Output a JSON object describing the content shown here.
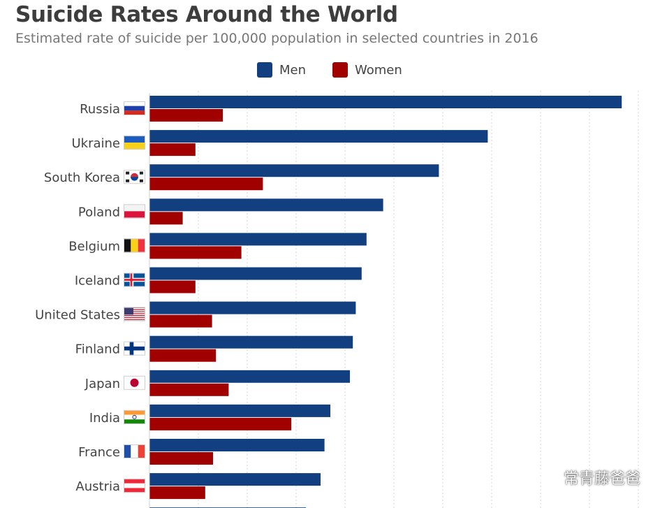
{
  "chart_data": {
    "type": "bar",
    "orientation": "horizontal",
    "title": "Suicide Rates Around the World",
    "subtitle": "Estimated rate of suicide per 100,000 population in selected countries in 2016",
    "legend_position": "top",
    "grid": true,
    "xlim": [
      0,
      50
    ],
    "categories": [
      "Russia",
      "Ukraine",
      "South Korea",
      "Poland",
      "Belgium",
      "Iceland",
      "United States",
      "Finland",
      "Japan",
      "India",
      "France",
      "Austria"
    ],
    "series": [
      {
        "name": "Men",
        "color": "#123f80",
        "values": [
          48.3,
          34.6,
          29.6,
          23.9,
          22.2,
          21.7,
          21.1,
          20.8,
          20.5,
          18.5,
          17.9,
          17.5
        ]
      },
      {
        "name": "Women",
        "color": "#a00000",
        "values": [
          7.5,
          4.7,
          11.6,
          3.4,
          9.4,
          4.7,
          6.4,
          6.8,
          8.1,
          14.5,
          6.5,
          5.7
        ]
      }
    ],
    "flags": [
      "russia-flag-icon",
      "ukraine-flag-icon",
      "south-korea-flag-icon",
      "poland-flag-icon",
      "belgium-flag-icon",
      "iceland-flag-icon",
      "united-states-flag-icon",
      "finland-flag-icon",
      "japan-flag-icon",
      "india-flag-icon",
      "france-flag-icon",
      "austria-flag-icon"
    ]
  },
  "watermark": {
    "text": "常青藤爸爸",
    "icon": "wechat-icon"
  }
}
